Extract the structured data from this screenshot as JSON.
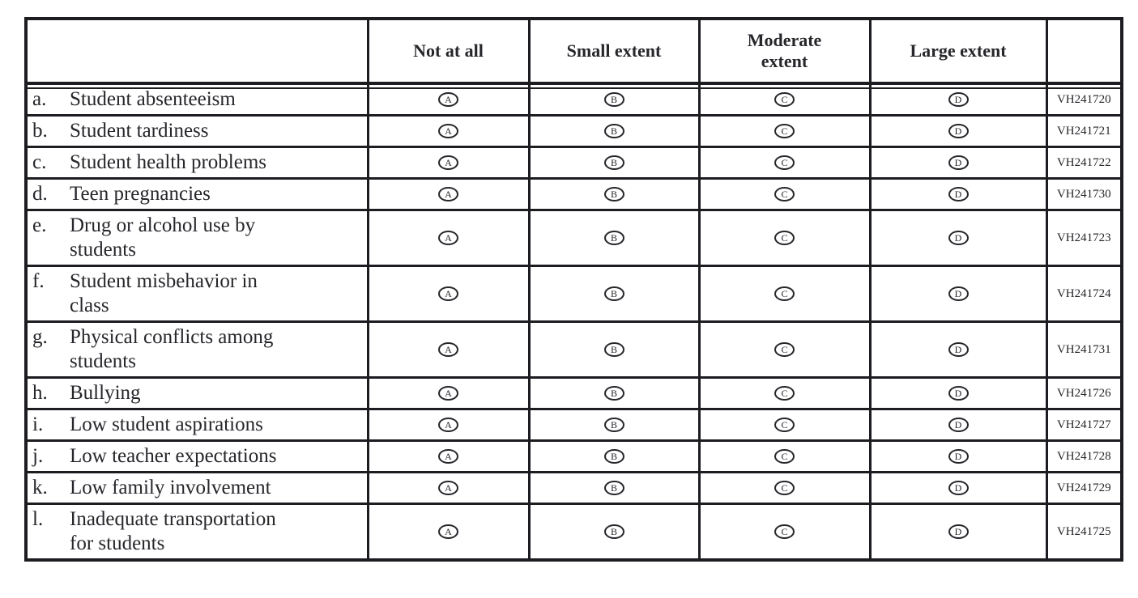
{
  "colors": {
    "ink": "#26262b",
    "border": "#1d1c21",
    "background": "#ffffff"
  },
  "table": {
    "header": {
      "columns": [
        "",
        "Not at all",
        "Small extent",
        "Moderate\nextent",
        "Large extent",
        ""
      ]
    },
    "answer_letters": [
      "A",
      "B",
      "C",
      "D"
    ],
    "rows": [
      {
        "letter": "a.",
        "label": "Student absenteeism",
        "code": "VH241720"
      },
      {
        "letter": "b.",
        "label": "Student tardiness",
        "code": "VH241721"
      },
      {
        "letter": "c.",
        "label": "Student health problems",
        "code": "VH241722"
      },
      {
        "letter": "d.",
        "label": "Teen pregnancies",
        "code": "VH241730"
      },
      {
        "letter": "e.",
        "label": "Drug or alcohol use by\nstudents",
        "code": "VH241723"
      },
      {
        "letter": "f.",
        "label": "Student misbehavior in\nclass",
        "code": "VH241724"
      },
      {
        "letter": "g.",
        "label": "Physical conflicts among\nstudents",
        "code": "VH241731"
      },
      {
        "letter": "h.",
        "label": "Bullying",
        "code": "VH241726"
      },
      {
        "letter": "i.",
        "label": "Low student aspirations",
        "code": "VH241727"
      },
      {
        "letter": "j.",
        "label": "Low teacher expectations",
        "code": "VH241728"
      },
      {
        "letter": "k.",
        "label": "Low family involvement",
        "code": "VH241729"
      },
      {
        "letter": "l.",
        "label": "Inadequate transportation\nfor students",
        "code": "VH241725"
      }
    ]
  }
}
